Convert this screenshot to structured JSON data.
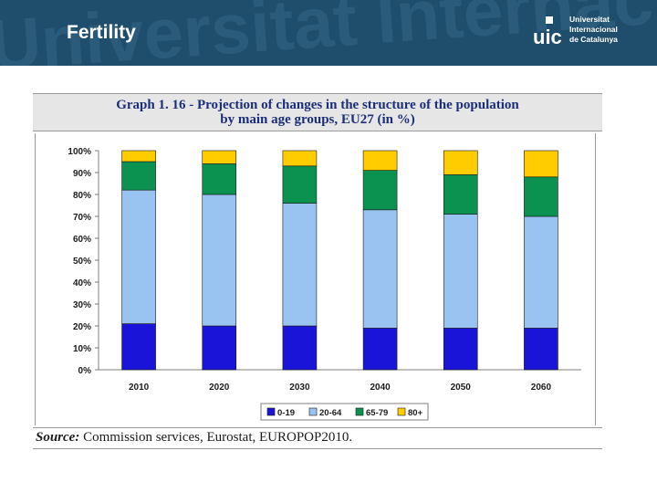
{
  "slide": {
    "title": "Fertility",
    "header_color": "#1f4e6d",
    "watermark_text": "Universitat Internacional",
    "logo": {
      "mark": "uic",
      "lines": [
        "Universitat",
        "Internacional",
        "de Catalunya"
      ]
    }
  },
  "graph_title_line1": "Graph 1. 16 - Projection of changes in the structure of the population",
  "graph_title_line2": "by main age groups, EU27 (in %)",
  "source_label": "Source:",
  "source_text": "Commission services, Eurostat, EUROPOP2010.",
  "chart_data": {
    "type": "bar",
    "stacked": true,
    "categories": [
      "2010",
      "2020",
      "2030",
      "2040",
      "2050",
      "2060"
    ],
    "series": [
      {
        "name": "0-19",
        "color": "#1a14d9",
        "values": [
          21,
          20,
          20,
          19,
          19,
          19
        ]
      },
      {
        "name": "20-64",
        "color": "#99c4f2",
        "values": [
          61,
          60,
          56,
          54,
          52,
          51
        ]
      },
      {
        "name": "65-79",
        "color": "#0b9150",
        "values": [
          13,
          14,
          17,
          18,
          18,
          18
        ]
      },
      {
        "name": "80+",
        "color": "#ffcc00",
        "values": [
          5,
          6,
          7,
          9,
          11,
          12
        ]
      }
    ],
    "ylim": [
      0,
      100
    ],
    "y_ticks": [
      "0%",
      "10%",
      "20%",
      "30%",
      "40%",
      "50%",
      "60%",
      "70%",
      "80%",
      "90%",
      "100%"
    ],
    "grid": false,
    "legend_position": "bottom"
  }
}
